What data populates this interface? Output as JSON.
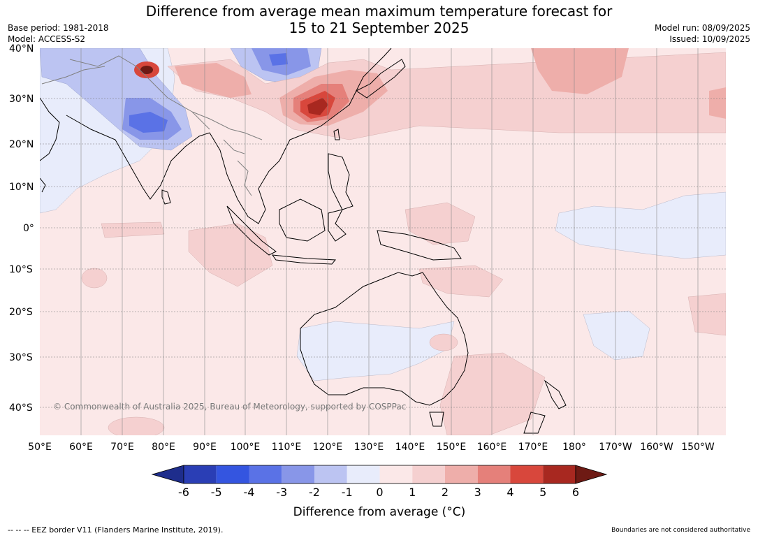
{
  "title_line1": "Difference from average mean maximum temperature forecast for",
  "title_line2": "15 to 21 September 2025",
  "base_period": "Base period: 1981-2018",
  "model": "Model: ACCESS-S2",
  "model_run": "Model run: 08/09/2025",
  "issued": "Issued: 10/09/2025",
  "copyright": "© Commonwealth of Australia 2025, Bureau of Meteorology, supported by COSPPac",
  "lat_labels": [
    "40°N",
    "30°N",
    "20°N",
    "10°N",
    "0°",
    "10°S",
    "20°S",
    "30°S",
    "40°S"
  ],
  "lon_labels": [
    "50°E",
    "60°E",
    "70°E",
    "80°E",
    "90°E",
    "100°E",
    "110°E",
    "120°E",
    "130°E",
    "140°E",
    "150°E",
    "160°E",
    "170°E",
    "180°",
    "170°W",
    "160°W",
    "150°W"
  ],
  "colorbar": {
    "tick_labels": [
      "-6",
      "-5",
      "-4",
      "-3",
      "-2",
      "-1",
      "0",
      "1",
      "2",
      "3",
      "4",
      "5",
      "6"
    ],
    "colors": [
      "#1e2d8c",
      "#2a3eb5",
      "#3455e0",
      "#5a72e6",
      "#8896e8",
      "#bcc4f2",
      "#e8ecfb",
      "#fbe8e8",
      "#f5d0d0",
      "#eeaeaa",
      "#e5807a",
      "#d8473c",
      "#a82820",
      "#6e1a14"
    ],
    "label": "Difference from average (°C)"
  },
  "footer_left": "--  --  -- EEZ border V11 (Flanders Marine Institute, 2019).",
  "footer_right": "Boundaries are not considered authoritative"
}
